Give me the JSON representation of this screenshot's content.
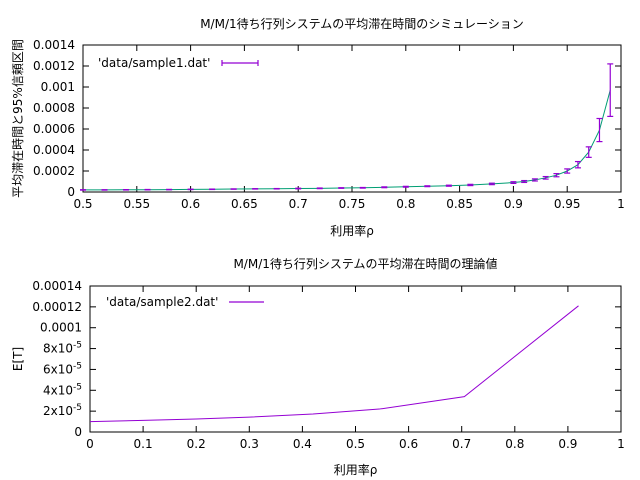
{
  "chart_data": [
    {
      "type": "line",
      "title": "M/M/1待ち行列システムの平均滞在時間のシミュレーション",
      "xlabel": "利用率ρ",
      "ylabel": "平均滞在時間と95%信頼区間",
      "xlim": [
        0.5,
        1.0
      ],
      "ylim": [
        0,
        0.0014
      ],
      "xticks": [
        0.5,
        0.55,
        0.6,
        0.65,
        0.7,
        0.75,
        0.8,
        0.85,
        0.9,
        0.95,
        1.0
      ],
      "xtick_labels": [
        "0.5",
        "0.55",
        "0.6",
        "0.65",
        "0.7",
        "0.75",
        "0.8",
        "0.85",
        "0.9",
        "0.95",
        "1"
      ],
      "yticks": [
        0,
        0.0002,
        0.0004,
        0.0006,
        0.0008,
        0.001,
        0.0012,
        0.0014
      ],
      "ytick_labels": [
        "0",
        "0.0002",
        "0.0004",
        "0.0006",
        "0.0008",
        "0.001",
        "0.0012",
        "0.0014"
      ],
      "grid": false,
      "legend_position": "top-left",
      "series": [
        {
          "name": "'data/sample1.dat'",
          "color": "#9400d3",
          "line_color": "#009e73",
          "x": [
            0.5,
            0.52,
            0.54,
            0.56,
            0.58,
            0.6,
            0.62,
            0.64,
            0.66,
            0.68,
            0.7,
            0.72,
            0.74,
            0.76,
            0.78,
            0.8,
            0.82,
            0.84,
            0.86,
            0.88,
            0.9,
            0.91,
            0.92,
            0.93,
            0.94,
            0.95,
            0.96,
            0.97,
            0.98,
            0.99
          ],
          "y": [
            2e-05,
            2e-05,
            2.1e-05,
            2.2e-05,
            2.3e-05,
            2.5e-05,
            2.6e-05,
            2.8e-05,
            3e-05,
            3.1e-05,
            3.3e-05,
            3.5e-05,
            3.8e-05,
            4e-05,
            4.5e-05,
            5e-05,
            5.5e-05,
            6e-05,
            6.7e-05,
            7.7e-05,
            9e-05,
            0.0001,
            0.000115,
            0.000135,
            0.00016,
            0.0002,
            0.00026,
            0.00038,
            0.00059,
            0.00097
          ],
          "err": [
            2e-06,
            2e-06,
            2e-06,
            2e-06,
            2e-06,
            2e-06,
            2e-06,
            2e-06,
            2e-06,
            2e-06,
            3e-06,
            3e-06,
            3e-06,
            3e-06,
            4e-06,
            4e-06,
            4e-06,
            5e-06,
            6e-06,
            7e-06,
            8e-06,
            9e-06,
            1e-05,
            1.2e-05,
            1.5e-05,
            2e-05,
            3e-05,
            5e-05,
            0.00011,
            0.00025
          ]
        }
      ]
    },
    {
      "type": "line",
      "title": "M/M/1待ち行列システムの平均滞在時間の理論値",
      "xlabel": "利用率ρ",
      "ylabel": "E[T]",
      "xlim": [
        0,
        1
      ],
      "ylim": [
        0,
        0.00014
      ],
      "xticks": [
        0,
        0.1,
        0.2,
        0.3,
        0.4,
        0.5,
        0.6,
        0.7,
        0.8,
        0.9,
        1
      ],
      "xtick_labels": [
        "0",
        "0.1",
        "0.2",
        "0.3",
        "0.4",
        "0.5",
        "0.6",
        "0.7",
        "0.8",
        "0.9",
        "1"
      ],
      "yticks": [
        0,
        2e-05,
        4e-05,
        6e-05,
        8e-05,
        0.0001,
        0.00012,
        0.00014
      ],
      "ytick_labels": [
        {
          "base": "0",
          "exp": ""
        },
        {
          "base": "2x10",
          "exp": "-5"
        },
        {
          "base": "4x10",
          "exp": "-5"
        },
        {
          "base": "6x10",
          "exp": "-5"
        },
        {
          "base": "8x10",
          "exp": "-5"
        },
        {
          "base": "0.0001",
          "exp": ""
        },
        {
          "base": "0.00012",
          "exp": ""
        },
        {
          "base": "0.00014",
          "exp": ""
        }
      ],
      "grid": false,
      "legend_position": "top-left",
      "series": [
        {
          "name": "'data/sample2.dat'",
          "color": "#9400d3",
          "x": [
            0,
            0.1,
            0.2,
            0.3,
            0.42,
            0.545,
            0.705,
            0.92
          ],
          "y": [
            1e-05,
            1.11e-05,
            1.25e-05,
            1.43e-05,
            1.72e-05,
            2.2e-05,
            3.39e-05,
            0.000121
          ]
        }
      ]
    }
  ]
}
